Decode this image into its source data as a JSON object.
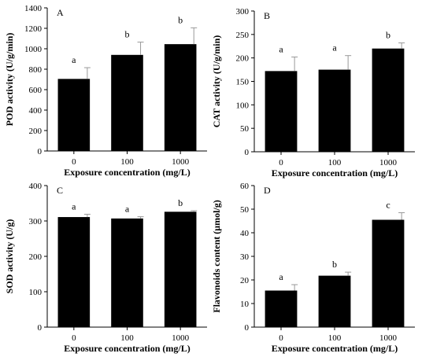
{
  "chart_data": [
    {
      "type": "bar",
      "panel_label": "A",
      "categories": [
        "0",
        "100",
        "1000"
      ],
      "values": [
        705,
        940,
        1045
      ],
      "errors": [
        110,
        125,
        160
      ],
      "significance": [
        "a",
        "b",
        "b"
      ],
      "xlabel": "Exposure concentration (mg/L)",
      "ylabel": "POD activity (U/g/min)",
      "ylim": [
        0,
        1400
      ],
      "yticks": [
        "0",
        "200",
        "400",
        "600",
        "800",
        "1000",
        "1200",
        "1400"
      ],
      "bar_color": "#000000"
    },
    {
      "type": "bar",
      "panel_label": "B",
      "categories": [
        "0",
        "100",
        "1000"
      ],
      "values": [
        172,
        175,
        220
      ],
      "errors": [
        30,
        30,
        12
      ],
      "significance": [
        "a",
        "a",
        "b"
      ],
      "xlabel": "Exposure concentration (mg/L)",
      "ylabel": "CAT activity (U/g/min)",
      "ylim": [
        0,
        300
      ],
      "yticks": [
        "0",
        "50",
        "100",
        "150",
        "200",
        "250",
        "300"
      ],
      "bar_color": "#000000"
    },
    {
      "type": "bar",
      "panel_label": "C",
      "categories": [
        "0",
        "100",
        "1000"
      ],
      "values": [
        311,
        307,
        326
      ],
      "errors": [
        8,
        5,
        3
      ],
      "significance": [
        "a",
        "a",
        "b"
      ],
      "xlabel": "Exposure concentration (mg/L)",
      "ylabel": "SOD activity (U/g)",
      "ylim": [
        0,
        400
      ],
      "yticks": [
        "0",
        "100",
        "200",
        "300",
        "400"
      ],
      "bar_color": "#000000"
    },
    {
      "type": "bar",
      "panel_label": "D",
      "categories": [
        "0",
        "100",
        "1000"
      ],
      "values": [
        15.5,
        21.8,
        45.5
      ],
      "errors": [
        2.5,
        1.5,
        3.0
      ],
      "significance": [
        "a",
        "b",
        "c"
      ],
      "xlabel": "Exposure concentration (mg/L)",
      "ylabel": "Flavonoids content (μmol/g)",
      "ylim": [
        0,
        60
      ],
      "yticks": [
        "0",
        "10",
        "20",
        "30",
        "40",
        "50",
        "60"
      ],
      "bar_color": "#000000"
    }
  ]
}
